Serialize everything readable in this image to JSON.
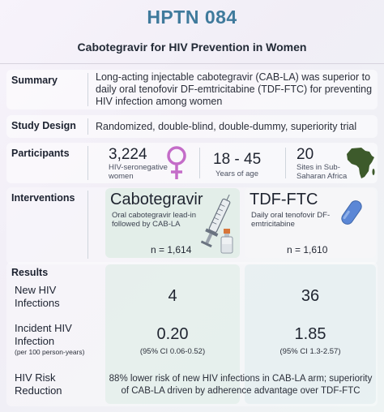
{
  "title": "HPTN 084",
  "subtitle": "Cabotegravir for HIV Prevention in Women",
  "summary": {
    "label": "Summary",
    "text_line1": "Long-acting injectable cabotegravir (CAB-LA) was superior to",
    "text_line2": "daily oral tenofovir DF-emtricitabine (TDF-FTC) for preventing",
    "text_line3": "HIV infection among women"
  },
  "study_design": {
    "label": "Study Design",
    "text": "Randomized, double-blind, double-dummy, superiority trial"
  },
  "participants": {
    "label": "Participants",
    "count": "3,224",
    "count_caption_line1": "HIV-seronegative",
    "count_caption_line2": "women",
    "age": "18 - 45",
    "age_caption": "Years of age",
    "sites": "20",
    "sites_caption_line1": "Sites in Sub-",
    "sites_caption_line2": "Saharan Africa",
    "icons": [
      "female-symbol-icon",
      "africa-map-icon"
    ]
  },
  "interventions": {
    "label": "Interventions",
    "cab": {
      "name": "Cabotegravir",
      "desc_line1": "Oral cabotegravir lead-in",
      "desc_line2": "followed by CAB-LA",
      "n": "n = 1,614",
      "icons": [
        "syringe-icon",
        "vial-icon"
      ]
    },
    "tdf": {
      "name": "TDF-FTC",
      "desc_line1": "Daily oral tenofovir DF-",
      "desc_line2": "emtricitabine",
      "n": "n = 1,610",
      "icons": [
        "pill-icon"
      ]
    }
  },
  "results": {
    "label": "Results",
    "new_infections": {
      "label_line1": "New HIV",
      "label_line2": "Infections",
      "cab": "4",
      "tdf": "36"
    },
    "incidence": {
      "label_line1": "Incident HIV",
      "label_line2": "Infection",
      "label_small": "(per 100 person-years)",
      "cab": "0.20",
      "cab_ci": "(95% CI 0.06-0.52)",
      "tdf": "1.85",
      "tdf_ci": "(95% CI 1.3-2.57)"
    },
    "risk_reduction": {
      "label_line1": "HIV Risk",
      "label_line2": "Reduction",
      "text_line1": "88% lower risk of new HIV infections in CAB-LA arm; superiority",
      "text_line2": "of CAB-LA driven by adherence advantage over TDF-FTC"
    }
  },
  "colors": {
    "title": "#3f7a9c",
    "female_symbol": "#c46cc8",
    "pill": "#5b87d6",
    "africa": "#3d5a2b"
  }
}
